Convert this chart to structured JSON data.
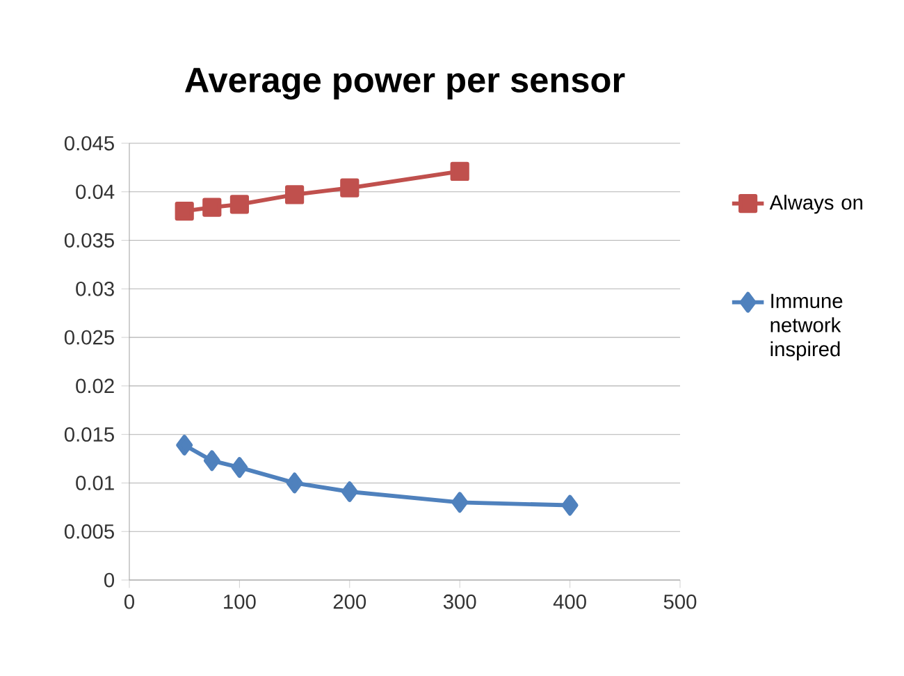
{
  "chart_data": {
    "type": "line",
    "title": "Average power per sensor",
    "xlim": [
      0,
      500
    ],
    "xticks": [
      0,
      100,
      200,
      300,
      400,
      500
    ],
    "ylim": [
      0,
      0.045
    ],
    "yticks": [
      0,
      0.005,
      0.01,
      0.015,
      0.02,
      0.025,
      0.03,
      0.035,
      0.04,
      0.045
    ],
    "grid": "y",
    "legend": "right",
    "series": [
      {
        "name": "Always on",
        "color": "#c0504d",
        "marker": "square",
        "x": [
          50,
          75,
          100,
          150,
          200,
          300
        ],
        "values": [
          0.038,
          0.0384,
          0.0387,
          0.0397,
          0.0404,
          0.0421
        ]
      },
      {
        "name": "Immune network inspired",
        "color": "#4f81bd",
        "marker": "diamond",
        "x": [
          50,
          75,
          100,
          150,
          200,
          300,
          400
        ],
        "values": [
          0.0139,
          0.0123,
          0.0116,
          0.01,
          0.0091,
          0.008,
          0.0077
        ]
      }
    ]
  }
}
